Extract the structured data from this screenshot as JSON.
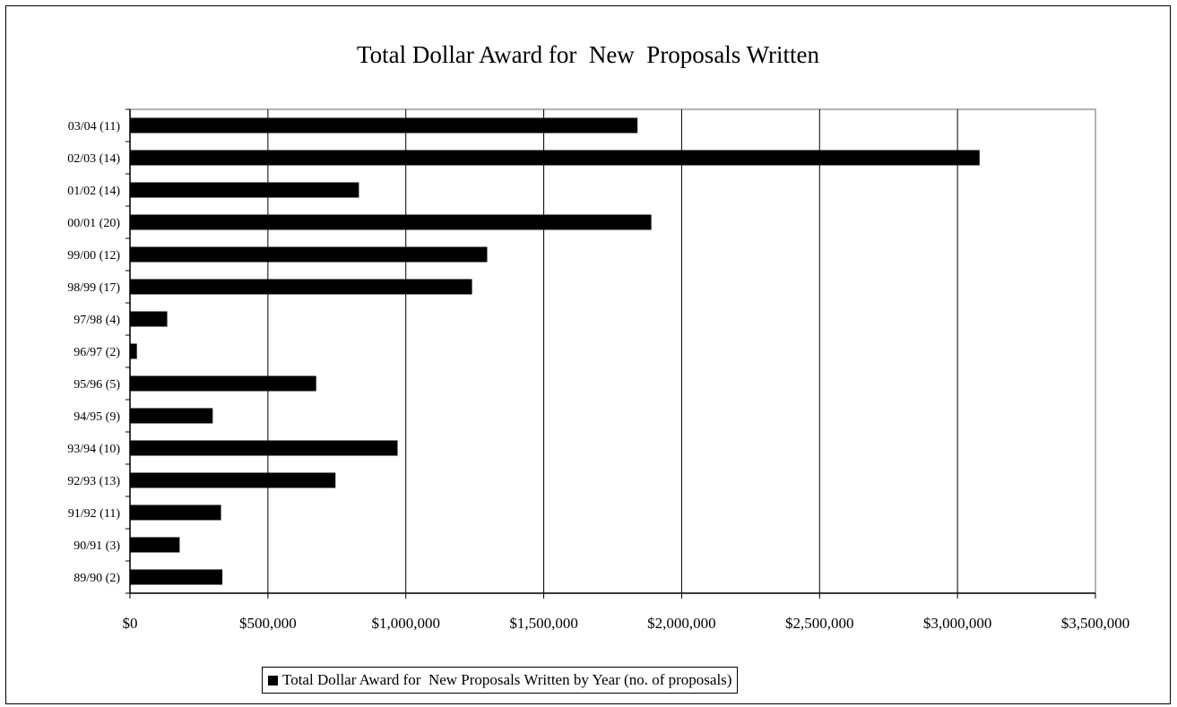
{
  "chart_data": {
    "type": "bar",
    "orientation": "horizontal",
    "title": "Total Dollar Award for  New  Proposals Written",
    "categories": [
      "03/04 (11)",
      "02/03 (14)",
      "01/02 (14)",
      "00/01 (20)",
      "99/00 (12)",
      "98/99 (17)",
      "97/98 (4)",
      "96/97 (2)",
      "95/96 (5)",
      "94/95 (9)",
      "93/94 (10)",
      "92/93 (13)",
      "91/92 (11)",
      "90/91 (3)",
      "89/90 (2)"
    ],
    "series": [
      {
        "name": "Total Dollar Award for  New Proposals Written by Year (no. of proposals)",
        "color": "#000000",
        "values": [
          1840000,
          3080000,
          830000,
          1890000,
          1295000,
          1240000,
          135000,
          25000,
          675000,
          300000,
          970000,
          745000,
          330000,
          180000,
          335000
        ]
      }
    ],
    "xlim": [
      0,
      3500000
    ],
    "x_ticks": [
      0,
      500000,
      1000000,
      1500000,
      2000000,
      2500000,
      3000000,
      3500000
    ],
    "x_tick_labels": [
      "$0",
      "$500,000",
      "$1,000,000",
      "$1,500,000",
      "$2,000,000",
      "$2,500,000",
      "$3,000,000",
      "$3,500,000"
    ],
    "xlabel": "",
    "ylabel": "",
    "grid": "vertical",
    "legend_position": "bottom"
  }
}
